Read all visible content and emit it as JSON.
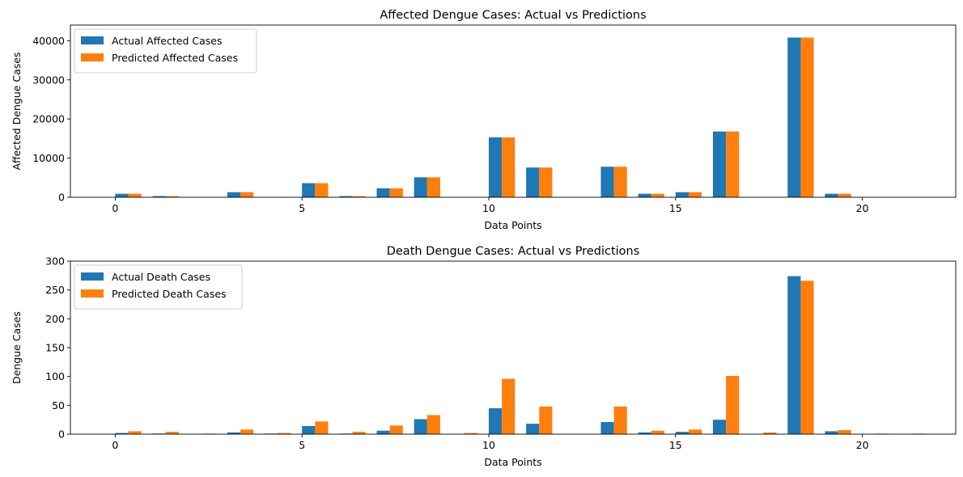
{
  "chart_data": [
    {
      "type": "bar",
      "title": "Affected Dengue Cases: Actual vs Predictions",
      "xlabel": "Data Points",
      "ylabel": "Affected Dengue Cases",
      "xlim": [
        -1.2,
        22.5
      ],
      "ylim": [
        0,
        44000
      ],
      "xticks": [
        0,
        5,
        10,
        15,
        20
      ],
      "yticks": [
        0,
        10000,
        20000,
        30000,
        40000
      ],
      "x": [
        0,
        1,
        2,
        3,
        4,
        5,
        6,
        7,
        8,
        9,
        10,
        11,
        12,
        13,
        14,
        15,
        16,
        17,
        18,
        19,
        20,
        21
      ],
      "series": [
        {
          "name": "Actual Affected Cases",
          "color": "#1f77b4",
          "values": [
            900,
            300,
            60,
            1300,
            50,
            3600,
            300,
            2300,
            5100,
            50,
            15300,
            7600,
            50,
            7800,
            900,
            1300,
            16800,
            50,
            40800,
            900,
            40,
            30
          ]
        },
        {
          "name": "Predicted Affected Cases",
          "color": "#ff7f0e",
          "values": [
            900,
            300,
            60,
            1300,
            50,
            3600,
            300,
            2300,
            5100,
            50,
            15300,
            7600,
            50,
            7800,
            900,
            1300,
            16800,
            50,
            40800,
            900,
            40,
            30
          ]
        }
      ],
      "legend": "upper-left",
      "grid": false
    },
    {
      "type": "bar",
      "title": "Death Dengue Cases: Actual vs Predictions",
      "xlabel": "Data Points",
      "ylabel": "Dengue Cases",
      "xlim": [
        -1.2,
        22.5
      ],
      "ylim": [
        0,
        300
      ],
      "xticks": [
        0,
        5,
        10,
        15,
        20
      ],
      "yticks": [
        0,
        50,
        100,
        150,
        200,
        250,
        300
      ],
      "x": [
        0,
        1,
        2,
        3,
        4,
        5,
        6,
        7,
        8,
        9,
        10,
        11,
        12,
        13,
        14,
        15,
        16,
        17,
        18,
        19,
        20,
        21
      ],
      "series": [
        {
          "name": "Actual Death Cases",
          "color": "#1f77b4",
          "values": [
            2,
            1,
            0,
            3,
            1,
            14,
            1,
            6,
            26,
            0,
            45,
            18,
            0,
            21,
            3,
            4,
            25,
            0,
            274,
            5,
            0,
            0
          ]
        },
        {
          "name": "Predicted Death Cases",
          "color": "#ff7f0e",
          "values": [
            5,
            4,
            1,
            8,
            2,
            22,
            4,
            15,
            33,
            2,
            96,
            48,
            0,
            48,
            6,
            8,
            101,
            3,
            266,
            7,
            1,
            1
          ]
        }
      ],
      "legend": "upper-left",
      "grid": false
    }
  ]
}
